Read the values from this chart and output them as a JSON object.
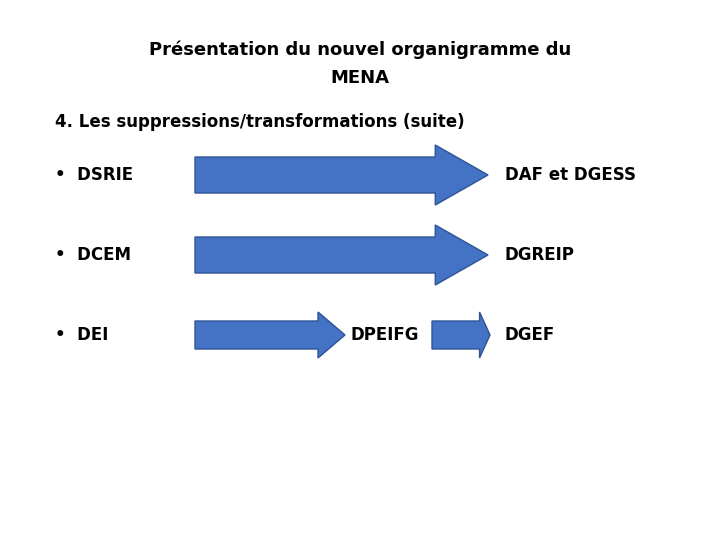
{
  "title_line1": "Présentation du nouvel organigramme du",
  "title_line2": "MENA",
  "subtitle": "4. Les suppressions/transformations (suite)",
  "background_color": "#ffffff",
  "arrow_color": "#4472C4",
  "text_color": "#000000",
  "title_fontsize": 13,
  "subtitle_fontsize": 12,
  "body_fontsize": 12,
  "rows": [
    {
      "bullet": "DSRIE",
      "arrow_type": "large",
      "middle_label": "",
      "result": "DAF et DGESS"
    },
    {
      "bullet": "DCEM",
      "arrow_type": "large",
      "middle_label": "",
      "result": "DGREIP"
    },
    {
      "bullet": "DEI",
      "arrow_type": "two_small",
      "middle_label": "DPEIFG",
      "result": "DGEF"
    }
  ]
}
